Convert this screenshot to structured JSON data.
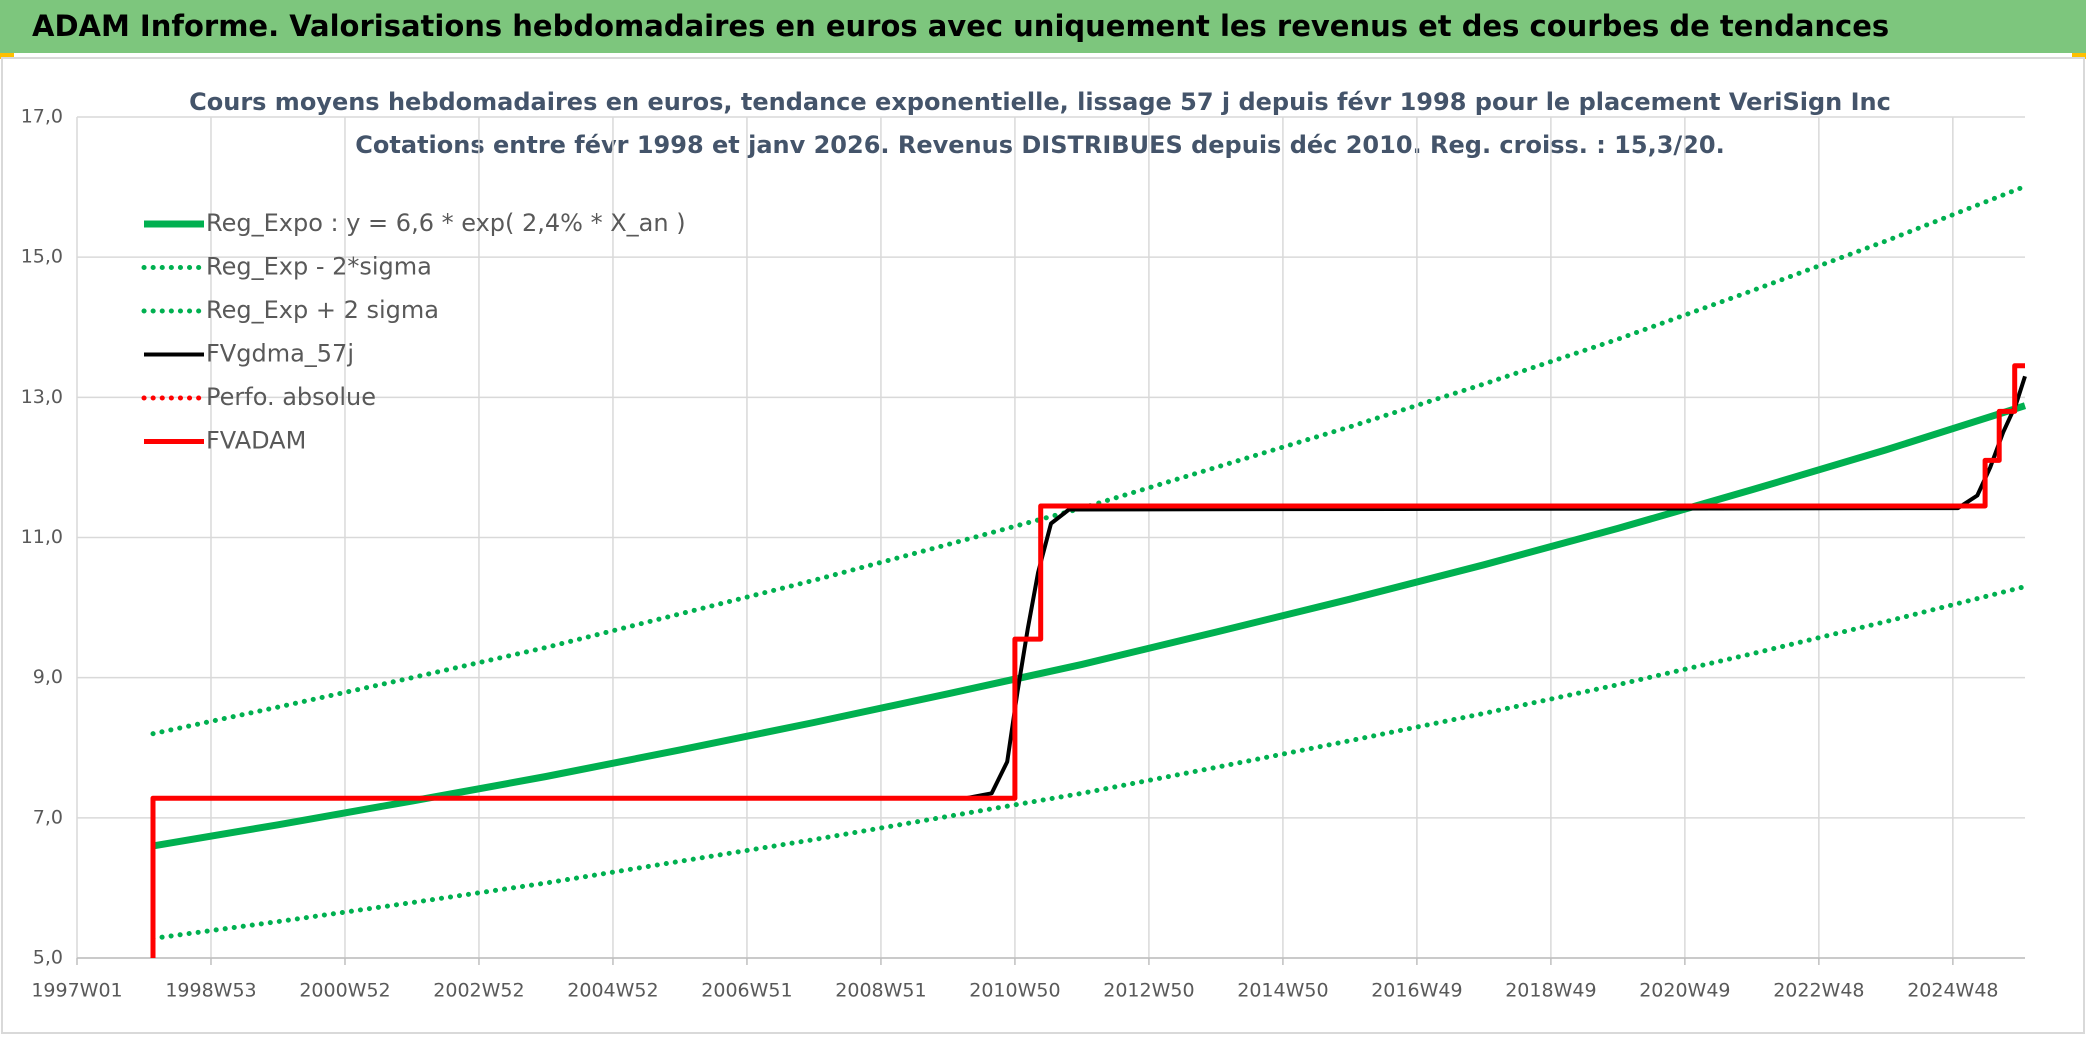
{
  "chart_data": {
    "type": "line",
    "header": "ADAM Informe. Valorisations hebdomadaires en euros avec uniquement les revenus et des courbes de tendances",
    "title": "Cours moyens hebdomadaires en euros, tendance exponentielle, lissage 57 j depuis févr 1998 pour le placement VeriSign Inc",
    "subtitle": "Cotations entre févr 1998 et janv 2026. Revenus DISTRIBUES depuis déc 2010. Reg. croiss. : 15,3/20.",
    "xlim": [
      0,
      1512
    ],
    "xticks": [
      {
        "value": 0,
        "label": "1997W01"
      },
      {
        "value": 104,
        "label": "1998W53"
      },
      {
        "value": 208,
        "label": "2000W52"
      },
      {
        "value": 312,
        "label": "2002W52"
      },
      {
        "value": 416,
        "label": "2004W52"
      },
      {
        "value": 520,
        "label": "2006W51"
      },
      {
        "value": 624,
        "label": "2008W51"
      },
      {
        "value": 728,
        "label": "2010W50"
      },
      {
        "value": 832,
        "label": "2012W50"
      },
      {
        "value": 936,
        "label": "2014W50"
      },
      {
        "value": 1040,
        "label": "2016W49"
      },
      {
        "value": 1144,
        "label": "2018W49"
      },
      {
        "value": 1248,
        "label": "2020W49"
      },
      {
        "value": 1352,
        "label": "2022W48"
      },
      {
        "value": 1456,
        "label": "2024W48"
      }
    ],
    "ylim": [
      5,
      17
    ],
    "yticks": [
      {
        "value": 5,
        "label": "5,0"
      },
      {
        "value": 7,
        "label": "7,0"
      },
      {
        "value": 9,
        "label": "9,0"
      },
      {
        "value": 11,
        "label": "11,0"
      },
      {
        "value": 13,
        "label": "13,0"
      },
      {
        "value": 15,
        "label": "15,0"
      },
      {
        "value": 17,
        "label": "17,0"
      }
    ],
    "grid": true,
    "legend": "top-left",
    "series": [
      {
        "name": "Reg_Expo : y = 6,6 * exp( 2,4% *  X_an )",
        "color": "#00b050",
        "dash": "solid",
        "x": [
          59,
          156,
          260,
          364,
          468,
          572,
          676,
          780,
          884,
          988,
          1092,
          1196,
          1300,
          1404,
          1512
        ],
        "values": [
          6.6,
          6.9,
          7.24,
          7.59,
          7.97,
          8.36,
          8.77,
          9.19,
          9.65,
          10.12,
          10.61,
          11.13,
          11.68,
          12.25,
          12.88
        ]
      },
      {
        "name": "Reg_Exp - 2*sigma",
        "color": "#00b050",
        "dash": "dotted",
        "x": [
          59,
          156,
          260,
          364,
          468,
          572,
          676,
          780,
          884,
          988,
          1092,
          1196,
          1300,
          1404,
          1512
        ],
        "values": [
          5.28,
          5.52,
          5.79,
          6.07,
          6.38,
          6.69,
          7.02,
          7.35,
          7.72,
          8.1,
          8.49,
          8.9,
          9.34,
          9.8,
          10.3
        ]
      },
      {
        "name": "Reg_Exp + 2 sigma",
        "color": "#00b050",
        "dash": "dotted",
        "x": [
          59,
          156,
          260,
          364,
          468,
          572,
          676,
          780,
          884,
          988,
          1092,
          1196,
          1300,
          1404,
          1512
        ],
        "values": [
          8.2,
          8.58,
          9.0,
          9.43,
          9.91,
          10.39,
          10.9,
          11.42,
          12.0,
          12.58,
          13.19,
          13.83,
          14.52,
          15.23,
          16.01
        ]
      },
      {
        "name": "FVgdma_57j",
        "color": "#000000",
        "dash": "solid",
        "x": [
          59,
          690,
          710,
          722,
          730,
          738,
          746,
          756,
          770,
          1460,
          1475,
          1485,
          1495,
          1505,
          1512
        ],
        "values": [
          7.28,
          7.28,
          7.35,
          7.8,
          8.8,
          9.7,
          10.5,
          11.2,
          11.4,
          11.42,
          11.6,
          12.0,
          12.5,
          12.9,
          13.3
        ]
      },
      {
        "name": "Perfo. absolue",
        "color": "#ff0000",
        "dash": "dotted",
        "x": [],
        "values": []
      },
      {
        "name": "FVADAM",
        "color": "#ff0000",
        "dash": "solid",
        "x": [
          59,
          59,
          728,
          728,
          748,
          748,
          1481,
          1481,
          1492,
          1492,
          1504,
          1504,
          1512
        ],
        "values": [
          5,
          7.28,
          7.28,
          9.55,
          9.55,
          11.45,
          11.45,
          12.1,
          12.1,
          12.8,
          12.8,
          13.45,
          13.45
        ]
      }
    ]
  }
}
